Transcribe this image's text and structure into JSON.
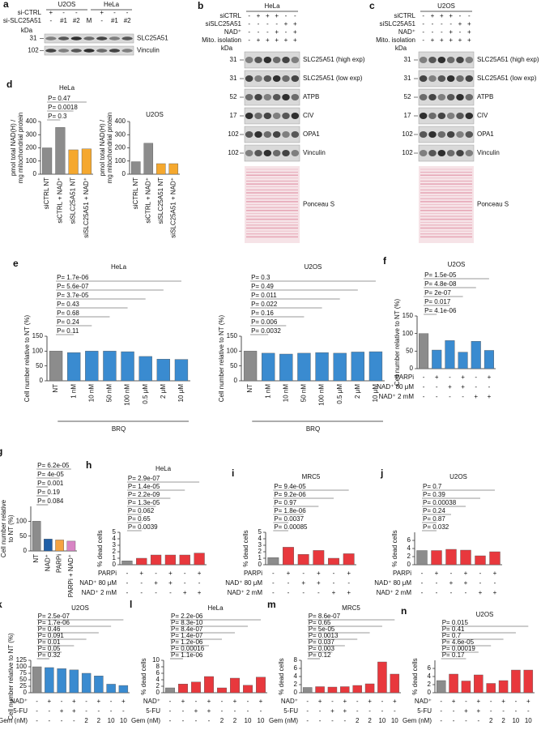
{
  "blots": [
    {
      "label": "a",
      "headers": [
        "U2OS",
        "HeLa"
      ],
      "sign_rows": [
        {
          "name": "si-CTRL",
          "signs": [
            "+",
            "-",
            "-",
            null,
            "+",
            "-",
            "-"
          ]
        },
        {
          "name": "si-SLC25A51",
          "signs": [
            "-",
            "#1",
            "#2",
            "M",
            "-",
            "#1",
            "#2"
          ]
        }
      ],
      "kda": "kDa",
      "markers": [
        "31",
        "102"
      ],
      "bands": [
        "SLC25A51",
        "Vinculin"
      ]
    },
    {
      "label": "b",
      "headers": [
        "HeLa"
      ],
      "sign_rows": [
        {
          "name": "siCTRL",
          "signs": [
            "-",
            "+",
            "+",
            "+",
            "-",
            "-"
          ]
        },
        {
          "name": "siSLC25A51",
          "signs": [
            "-",
            "-",
            "-",
            "-",
            "+",
            "+"
          ]
        },
        {
          "name": "NAD⁺",
          "signs": [
            "-",
            "-",
            "-",
            "+",
            "-",
            "+"
          ]
        },
        {
          "name": "Mito. isolation",
          "signs": [
            "-",
            "+",
            "+",
            "+",
            "+",
            "+"
          ]
        }
      ],
      "kda": "kDa",
      "markers": [
        "31",
        "31",
        "52",
        "17",
        "102",
        "102"
      ],
      "bands": [
        "SLC25A51 (high exp)",
        "SLC25A51 (low exp)",
        "ATPB",
        "CIV",
        "OPA1",
        "Vinculin"
      ],
      "stain": "Ponceau S"
    },
    {
      "label": "c",
      "headers": [
        "U2OS"
      ],
      "sign_rows": [
        {
          "name": "siCTRL",
          "signs": [
            "-",
            "+",
            "+",
            "+",
            "-",
            "-"
          ]
        },
        {
          "name": "siSLC25A51",
          "signs": [
            "-",
            "-",
            "-",
            "-",
            "+",
            "+"
          ]
        },
        {
          "name": "NAD⁺",
          "signs": [
            "-",
            "-",
            "-",
            "+",
            "-",
            "+"
          ]
        },
        {
          "name": "Mito. isolation",
          "signs": [
            "-",
            "+",
            "+",
            "+",
            "+",
            "+"
          ]
        }
      ],
      "kda": "kDa",
      "markers": [
        "31",
        "31",
        "52",
        "17",
        "102",
        "102"
      ],
      "bands": [
        "SLC25A51 (high exp)",
        "SLC25A51 (low exp)",
        "ATPB",
        "CIV",
        "OPA1",
        "Vinculin"
      ],
      "stain": "Ponceau S"
    }
  ],
  "chart_data": [
    {
      "type": "bar",
      "label": "d",
      "title": "HeLa",
      "ylabel": [
        "pmol total NAD(H) /",
        "mg mitochondrial protein"
      ],
      "categories": [
        "siCTRL NT",
        "siCTRL + NAD⁺",
        "siSLC25A51 NT",
        "siSLC25A51 + NAD⁺"
      ],
      "values": [
        200,
        355,
        185,
        192
      ],
      "colors": [
        "#8c8c8c",
        "#8c8c8c",
        "#f5a82e",
        "#f5a82e"
      ],
      "ylim": [
        0,
        400
      ],
      "yticks": [
        0,
        100,
        200,
        300,
        400
      ],
      "annotations": [
        "P= 0.47",
        "P= 0.0018",
        "P= 0.3"
      ]
    },
    {
      "type": "bar",
      "title": "U2OS",
      "ylabel": [
        "pmol total NAD(H) /",
        "mg mitochondrial protein"
      ],
      "categories": [
        "siCTRL NT",
        "siCTRL + NAD⁺",
        "siSLC25A51 NT",
        "siSLC25A51 + NAD⁺"
      ],
      "values": [
        95,
        235,
        80,
        80
      ],
      "colors": [
        "#8c8c8c",
        "#8c8c8c",
        "#f5a82e",
        "#f5a82e"
      ],
      "ylim": [
        0,
        400
      ],
      "yticks": [
        0,
        100,
        200,
        300,
        400
      ]
    },
    {
      "type": "bar",
      "label": "e",
      "title": "HeLa",
      "ylabel": [
        "Cell number relative to NT (%)"
      ],
      "categories": [
        "NT",
        "1 nM",
        "10 nM",
        "50 nM",
        "100 nM",
        "0.5 μM",
        "2 μM",
        "10 μM"
      ],
      "xlabel": "BRQ",
      "values": [
        100,
        95,
        100,
        100,
        98,
        82,
        73,
        72
      ],
      "colors": [
        "#8c8c8c",
        "#3a8bd0",
        "#3a8bd0",
        "#3a8bd0",
        "#3a8bd0",
        "#3a8bd0",
        "#3a8bd0",
        "#3a8bd0"
      ],
      "ylim": [
        0,
        150
      ],
      "yticks": [
        0,
        50,
        100,
        150
      ],
      "annotations": [
        "P= 1.7e-06",
        "P= 5.6e-07",
        "P= 3.7e-05",
        "P= 0.43",
        "P= 0.68",
        "P= 0.24",
        "P= 0.11"
      ]
    },
    {
      "type": "bar",
      "title": "U2OS",
      "ylabel": [
        "Cell number relative to NT (%)"
      ],
      "categories": [
        "NT",
        "1 nM",
        "10 nM",
        "50 nM",
        "100 nM",
        "0.5 μM",
        "2 μM",
        "10 μM"
      ],
      "xlabel": "BRQ",
      "values": [
        100,
        93,
        90,
        93,
        95,
        93,
        97,
        98
      ],
      "colors": [
        "#8c8c8c",
        "#3a8bd0",
        "#3a8bd0",
        "#3a8bd0",
        "#3a8bd0",
        "#3a8bd0",
        "#3a8bd0",
        "#3a8bd0"
      ],
      "ylim": [
        0,
        150
      ],
      "yticks": [
        0,
        50,
        100,
        150
      ],
      "annotations": [
        "P= 0.3",
        "P= 0.49",
        "P= 0.011",
        "P= 0.022",
        "P= 0.16",
        "P= 0.006",
        "P= 0.0032"
      ]
    },
    {
      "type": "bar",
      "label": "f",
      "title": "U2OS",
      "ylabel": [
        "Cell number relative to NT (%)"
      ],
      "values": [
        100,
        53,
        80,
        47,
        78,
        52
      ],
      "colors": [
        "#8c8c8c",
        "#3a8bd0",
        "#3a8bd0",
        "#3a8bd0",
        "#3a8bd0",
        "#3a8bd0"
      ],
      "ylim": [
        0,
        150
      ],
      "yticks": [
        0,
        50,
        100,
        150
      ],
      "conditions": [
        {
          "name": "PARPi",
          "signs": [
            "-",
            "+",
            "-",
            "+",
            "-",
            "+"
          ]
        },
        {
          "name": "NAD⁺ 80 μM",
          "signs": [
            "-",
            "-",
            "+",
            "+",
            "-",
            "-"
          ]
        },
        {
          "name": "NAD⁺ 2 mM",
          "signs": [
            "-",
            "-",
            "-",
            "-",
            "+",
            "+"
          ]
        }
      ],
      "annotations": [
        "P= 1.5e-05",
        "P= 4.8e-08",
        "P= 2e-07",
        "P= 0.017",
        "P= 4.1e-06"
      ]
    },
    {
      "type": "bar",
      "label": "g",
      "ylabel": [
        "Cell number relative",
        "to NT (%)"
      ],
      "categories": [
        "NT",
        "NAD⁺",
        "PARPi",
        "PARPi + NAD⁺"
      ],
      "values": [
        100,
        40,
        37,
        33
      ],
      "colors": [
        "#8c8c8c",
        "#1f5fa8",
        "#f5a340",
        "#d884c4"
      ],
      "ylim": [
        0,
        150
      ],
      "yticks": [
        0,
        50,
        100
      ],
      "annotations": [
        "P= 6.2e-05",
        "P= 4e-05",
        "P= 0.001",
        "P= 0.19",
        "P= 0.084"
      ]
    },
    {
      "type": "bar",
      "label": "h",
      "title": "HeLa",
      "ylabel": [
        "% dead cells"
      ],
      "values": [
        0.6,
        1.0,
        1.5,
        1.5,
        1.5,
        1.8
      ],
      "colors": [
        "#8c8c8c",
        "#e8383d",
        "#e8383d",
        "#e8383d",
        "#e8383d",
        "#e8383d"
      ],
      "ylim": [
        0,
        5
      ],
      "yticks": [
        0,
        1,
        2,
        3,
        4,
        5
      ],
      "conditions": [
        {
          "name": "PARPi",
          "signs": [
            "-",
            "+",
            "-",
            "+",
            "-",
            "+"
          ]
        },
        {
          "name": "NAD⁺ 80 μM",
          "signs": [
            "-",
            "-",
            "+",
            "+",
            "-",
            "-"
          ]
        },
        {
          "name": "NAD⁺ 2 mM",
          "signs": [
            "-",
            "-",
            "-",
            "-",
            "+",
            "+"
          ]
        }
      ],
      "annotations": [
        "P= 2.9e-07",
        "P= 1.4e-05",
        "P= 2.2e-09",
        "P= 1.3e-05",
        "P= 0.062",
        "P= 0.65",
        "P= 0.0039"
      ]
    },
    {
      "type": "bar",
      "label": "i",
      "title": "MRC5",
      "ylabel": [
        "% dead cells"
      ],
      "values": [
        1.1,
        2.7,
        1.6,
        2.2,
        1.0,
        1.7
      ],
      "colors": [
        "#8c8c8c",
        "#e8383d",
        "#e8383d",
        "#e8383d",
        "#e8383d",
        "#e8383d"
      ],
      "ylim": [
        0,
        5
      ],
      "yticks": [
        0,
        1,
        2,
        3,
        4,
        5
      ],
      "conditions": [
        {
          "name": "PARPi",
          "signs": [
            "-",
            "+",
            "-",
            "+",
            "-",
            "+"
          ]
        },
        {
          "name": "NAD⁺ 80 μM",
          "signs": [
            "-",
            "-",
            "+",
            "+",
            "-",
            "-"
          ]
        },
        {
          "name": "NAD⁺ 2 mM",
          "signs": [
            "-",
            "-",
            "-",
            "-",
            "+",
            "+"
          ]
        }
      ],
      "annotations": [
        "P= 9.4e-05",
        "P= 9.2e-06",
        "P= 0.97",
        "P= 1.8e-06",
        "P= 0.0037",
        "P= 0.00085"
      ]
    },
    {
      "type": "bar",
      "label": "j",
      "title": "U2OS",
      "ylabel": [
        "% dead cells"
      ],
      "values": [
        3.5,
        3.5,
        3.8,
        3.6,
        2.2,
        3.2
      ],
      "colors": [
        "#8c8c8c",
        "#e8383d",
        "#e8383d",
        "#e8383d",
        "#e8383d",
        "#e8383d"
      ],
      "ylim": [
        0,
        8
      ],
      "yticks": [
        0,
        2,
        4,
        6
      ],
      "conditions": [
        {
          "name": "PARPi",
          "signs": [
            "-",
            "+",
            "-",
            "+",
            "-",
            "+"
          ]
        },
        {
          "name": "NAD⁺ 80 μM",
          "signs": [
            "-",
            "-",
            "+",
            "+",
            "-",
            "-"
          ]
        },
        {
          "name": "NAD⁺ 2 mM",
          "signs": [
            "-",
            "-",
            "-",
            "-",
            "+",
            "+"
          ]
        }
      ],
      "annotations": [
        "P= 0.7",
        "P= 0.39",
        "P= 0.00038",
        "P= 0.24",
        "P= 0.87",
        "P= 0.032"
      ]
    },
    {
      "type": "bar",
      "label": "k",
      "title": "U2OS",
      "ylabel": [
        "Cell number relative to NT (%)"
      ],
      "values": [
        100,
        97,
        93,
        88,
        75,
        65,
        33,
        28
      ],
      "colors": [
        "#8c8c8c",
        "#3a8bd0",
        "#3a8bd0",
        "#3a8bd0",
        "#3a8bd0",
        "#3a8bd0",
        "#3a8bd0",
        "#3a8bd0"
      ],
      "ylim": [
        0,
        125
      ],
      "yticks": [
        0,
        25,
        50,
        75,
        100,
        125
      ],
      "conditions": [
        {
          "name": "NAD⁺",
          "signs": [
            "-",
            "+",
            "-",
            "+",
            "-",
            "+",
            "-",
            "+"
          ]
        },
        {
          "name": "5-FU",
          "signs": [
            "-",
            "-",
            "+",
            "+",
            "-",
            "-",
            "-",
            "-"
          ]
        },
        {
          "name": "Gem (nM)",
          "signs": [
            "-",
            "-",
            "-",
            "-",
            "2",
            "2",
            "10",
            "10"
          ]
        }
      ],
      "annotations": [
        "P= 2.5e-07",
        "P= 1.7e-06",
        "P= 0.46",
        "P= 0.091",
        "P= 0.01",
        "P= 0.05",
        "P= 0.32"
      ]
    },
    {
      "type": "bar",
      "label": "l",
      "title": "HeLa",
      "ylabel": [
        "% dead cells"
      ],
      "values": [
        1.5,
        2.7,
        3.3,
        5.0,
        1.5,
        4.5,
        2.3,
        4.8
      ],
      "colors": [
        "#8c8c8c",
        "#e8383d",
        "#e8383d",
        "#e8383d",
        "#e8383d",
        "#e8383d",
        "#e8383d",
        "#e8383d"
      ],
      "ylim": [
        0,
        10
      ],
      "yticks": [
        0,
        2,
        4,
        6,
        8,
        10
      ],
      "conditions": [
        {
          "name": "NAD⁺",
          "signs": [
            "-",
            "+",
            "-",
            "+",
            "-",
            "+",
            "-",
            "+"
          ]
        },
        {
          "name": "5-FU",
          "signs": [
            "-",
            "-",
            "+",
            "+",
            "-",
            "-",
            "-",
            "-"
          ]
        },
        {
          "name": "Gem (nM)",
          "signs": [
            "-",
            "-",
            "-",
            "-",
            "2",
            "2",
            "10",
            "10"
          ]
        }
      ],
      "annotations": [
        "P= 2.2e-06",
        "P= 8.3e-10",
        "P= 8.4e-07",
        "P= 1.4e-07",
        "P= 1.2e-06",
        "P= 0.00016",
        "P= 1.1e-06"
      ]
    },
    {
      "type": "bar",
      "label": "m",
      "title": "MRC5",
      "ylabel": [
        "% dead cells"
      ],
      "values": [
        1.3,
        1.5,
        1.4,
        1.5,
        1.8,
        2.2,
        7.6,
        4.6
      ],
      "colors": [
        "#8c8c8c",
        "#e8383d",
        "#e8383d",
        "#e8383d",
        "#e8383d",
        "#e8383d",
        "#e8383d",
        "#e8383d"
      ],
      "ylim": [
        0,
        8
      ],
      "yticks": [
        0,
        2,
        4,
        6,
        8
      ],
      "conditions": [
        {
          "name": "NAD⁺",
          "signs": [
            "-",
            "+",
            "-",
            "+",
            "-",
            "+",
            "-",
            "+"
          ]
        },
        {
          "name": "5-FU",
          "signs": [
            "-",
            "-",
            "+",
            "+",
            "-",
            "-",
            "-",
            "-"
          ]
        },
        {
          "name": "Gem (nM)",
          "signs": [
            "-",
            "-",
            "-",
            "-",
            "2",
            "2",
            "10",
            "10"
          ]
        }
      ],
      "annotations": [
        "P= 8.6e-07",
        "P= 0.65",
        "P= 5e-05",
        "P= 0.0013",
        "P= 0.037",
        "P= 0.003",
        "P= 0.12"
      ]
    },
    {
      "type": "bar",
      "label": "n",
      "title": "U2OS",
      "ylabel": [
        "% dead cells"
      ],
      "values": [
        3.0,
        4.6,
        2.9,
        4.4,
        2.3,
        3.0,
        5.6,
        5.6
      ],
      "colors": [
        "#8c8c8c",
        "#e8383d",
        "#e8383d",
        "#e8383d",
        "#e8383d",
        "#e8383d",
        "#e8383d",
        "#e8383d"
      ],
      "ylim": [
        0,
        8
      ],
      "yticks": [
        0,
        2,
        4,
        6
      ],
      "conditions": [
        {
          "name": "NAD⁺",
          "signs": [
            "-",
            "+",
            "-",
            "+",
            "-",
            "+",
            "-",
            "+"
          ]
        },
        {
          "name": "5-FU",
          "signs": [
            "-",
            "-",
            "+",
            "+",
            "-",
            "-",
            "-",
            "-"
          ]
        },
        {
          "name": "Gem (nM)",
          "signs": [
            "-",
            "-",
            "-",
            "-",
            "2",
            "2",
            "10",
            "10"
          ]
        }
      ],
      "annotations": [
        "P= 0.015",
        "P= 0.41",
        "P= 0.7",
        "P= 4.6e-05",
        "P= 0.00019",
        "P= 0.17"
      ]
    }
  ]
}
